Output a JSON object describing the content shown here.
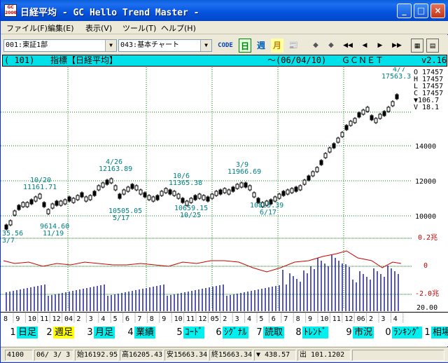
{
  "window": {
    "title": "日経平均 - GC Hello Trend Master -",
    "icon_text": "GC 2000",
    "buttons": [
      "_",
      "□",
      "×"
    ]
  },
  "menu": [
    "ファイル(F)",
    "編集(E)",
    "表示(V)",
    "ツール(T)",
    "ヘルプ(H)"
  ],
  "toolbar": {
    "market_select": "001:東証1部",
    "chart_select": "043:基本チャート",
    "code_btn": "CODE",
    "period_btns": [
      "日",
      "週",
      "月",
      "📰"
    ],
    "nav": [
      "◆",
      "◆",
      "◀◀",
      "◀",
      "▶",
      "▶▶"
    ]
  },
  "chart_header": {
    "code": "(  101)",
    "name": "指標【日経平均】",
    "date": "～(06/04/10)",
    "brand": "ＧＣＮＥＴ",
    "version": "v2.16"
  },
  "ohlc_panel": {
    "o": "O 17457",
    "h": "H 17457",
    "l": "L 17457",
    "c": "C 17457",
    "chg": "▼106.7",
    "v": "V  18.1"
  },
  "price_axis": [
    "14000",
    "12000",
    "10000"
  ],
  "osc_axis": [
    "0.2兆",
    "0",
    "-2.0兆",
    "20.00"
  ],
  "annotations": [
    {
      "text": "10/20",
      "pos": "hi"
    },
    {
      "text": "11161.71",
      "pos": "hi"
    },
    {
      "text": "9614.60",
      "pos": "lo"
    },
    {
      "text": "11/19",
      "pos": "lo"
    },
    {
      "text": "4/26",
      "pos": "hi"
    },
    {
      "text": "12163.89",
      "pos": "hi"
    },
    {
      "text": "10505.05",
      "pos": "lo"
    },
    {
      "text": "5/17",
      "pos": "lo"
    },
    {
      "text": "10/6",
      "pos": "hi"
    },
    {
      "text": "11365.38",
      "pos": "hi"
    },
    {
      "text": "10659.15",
      "pos": "lo"
    },
    {
      "text": "10/25",
      "pos": "lo"
    },
    {
      "text": "3/9",
      "pos": "hi"
    },
    {
      "text": "11966.69",
      "pos": "hi"
    },
    {
      "text": "10825.39",
      "pos": "lo"
    },
    {
      "text": "6/17",
      "pos": "lo"
    },
    {
      "text": "4/7",
      "pos": "hi"
    },
    {
      "text": "17563.3",
      "pos": "hi"
    },
    {
      "text": "35.56",
      "pos": "lo"
    },
    {
      "text": "3/7",
      "pos": "lo"
    }
  ],
  "months": [
    "8",
    "9",
    "10",
    "11",
    "12",
    "04",
    "2",
    "3",
    "4",
    "5",
    "6",
    "7",
    "8",
    "9",
    "10",
    "11",
    "12",
    "05",
    "2",
    "3",
    "4",
    "5",
    "6",
    "7",
    "8",
    "9",
    "10",
    "11",
    "12",
    "06",
    "2",
    "3",
    "4"
  ],
  "function_keys": [
    {
      "num": "1",
      "label": "日足",
      "selected": false
    },
    {
      "num": "2",
      "label": "週足",
      "selected": true
    },
    {
      "num": "3",
      "label": "月足",
      "selected": false
    },
    {
      "num": "4",
      "label": "業績",
      "selected": false
    },
    {
      "num": "5",
      "label": "ｺｰﾄﾞ",
      "selected": false
    },
    {
      "num": "6",
      "label": "ｼｸﾞﾅﾙ",
      "selected": false
    },
    {
      "num": "7",
      "label": "読取",
      "selected": false
    },
    {
      "num": "8",
      "label": "ﾄﾚﾝﾄﾞ",
      "selected": false
    },
    {
      "num": "9",
      "label": "市況",
      "selected": false
    },
    {
      "num": "0",
      "label": "ﾗﾝｷﾝｸﾞ",
      "selected": false
    },
    {
      "num": "1",
      "label": "相場",
      "selected": false
    }
  ],
  "status": {
    "code": "4100",
    "date": "06/ 3/ 3",
    "open": "始16192.95",
    "high": "高16205.43",
    "low": "安15663.34",
    "close": "終15663.34",
    "change": "▼  438.57",
    "volume": "出  101.1202"
  },
  "colors": {
    "header_bg": "#00e0e8",
    "chart_text": "#008080",
    "osc_line": "#cc0000",
    "volume_bar": "#2020a0",
    "selected_key": "#ffff00",
    "key_bg": "#00f0f0"
  }
}
